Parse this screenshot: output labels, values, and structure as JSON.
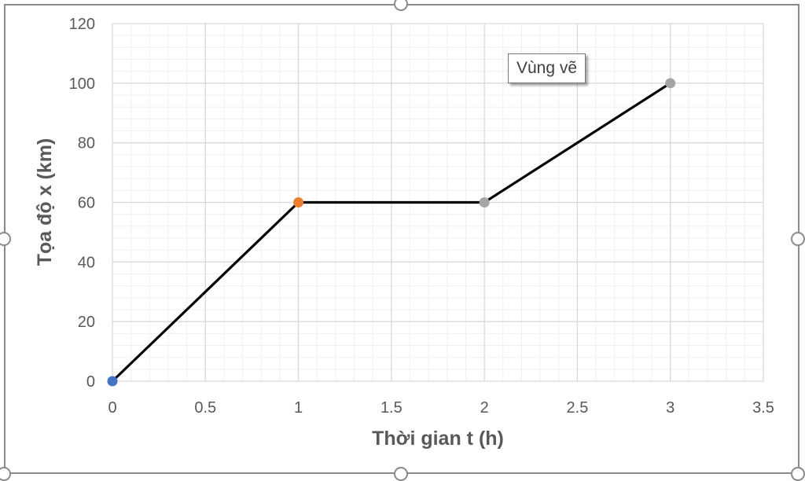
{
  "tooltip": {
    "text": "Vùng vẽ"
  },
  "chart_data": {
    "type": "scatter",
    "title": "",
    "xlabel": "Thời gian t (h)",
    "ylabel": "Tọa độ x (km)",
    "xlim": [
      0,
      3.5
    ],
    "ylim": [
      0,
      120
    ],
    "x_ticks": [
      "0",
      "0.5",
      "1",
      "1.5",
      "2",
      "2.5",
      "3",
      "3.5"
    ],
    "y_ticks": [
      "0",
      "20",
      "40",
      "60",
      "80",
      "100",
      "120"
    ],
    "grid": "major and minor",
    "legend": "none",
    "line": {
      "color": "#000000",
      "x": [
        0,
        1,
        2,
        3
      ],
      "y": [
        0,
        60,
        60,
        100
      ]
    },
    "points": [
      {
        "x": 0,
        "y": 0,
        "color": "#4472c4"
      },
      {
        "x": 1,
        "y": 60,
        "color": "#ed7d31"
      },
      {
        "x": 2,
        "y": 60,
        "color": "#a5a5a5"
      },
      {
        "x": 3,
        "y": 100,
        "color": "#a5a5a5"
      }
    ]
  }
}
